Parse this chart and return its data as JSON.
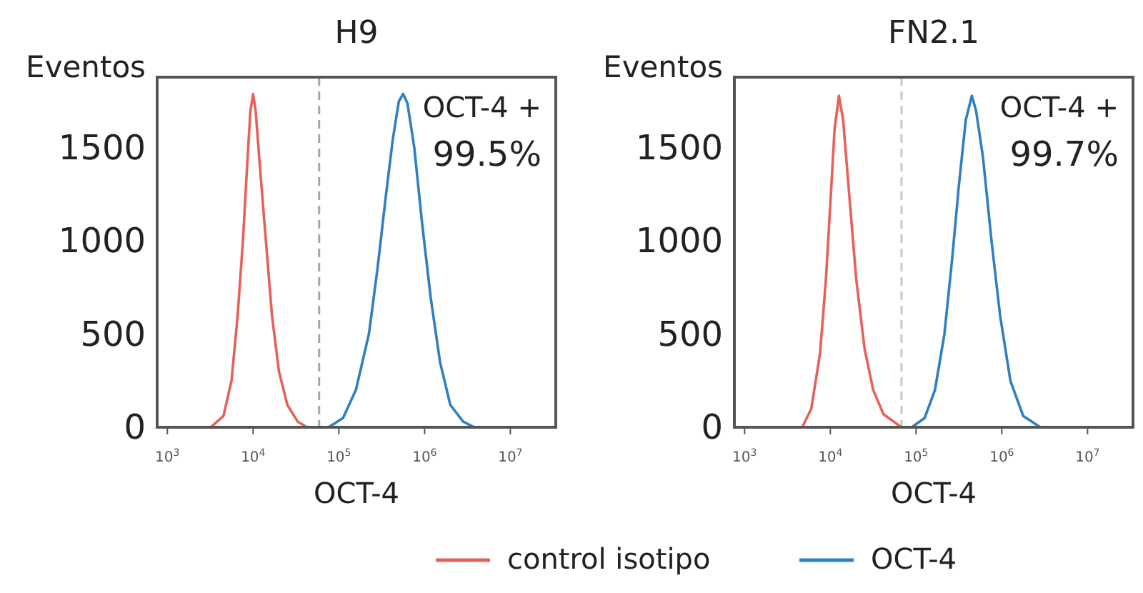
{
  "chart_data": [
    {
      "type": "line",
      "title": "H9",
      "xlabel": "OCT-4",
      "ylabel": "Eventos",
      "log": "x",
      "xlim": [
        760,
        33900000
      ],
      "xticks": [
        {
          "value": 1000,
          "label": "10$^{3}$"
        },
        {
          "value": 10000,
          "label": "10$^{4}$"
        },
        {
          "value": 100000,
          "label": "10$^{5}$"
        },
        {
          "value": 1000000,
          "label": "10$^{6}$"
        },
        {
          "value": 10000000,
          "label": "10$^{7}$"
        }
      ],
      "ylim": [
        0,
        1880
      ],
      "yticks": [
        0,
        500,
        1000,
        1500
      ],
      "legend": "bottom",
      "annotations": [
        "OCT-4 +",
        "99.5%"
      ],
      "ref_lines": [
        {
          "axis": "x",
          "value": 58900,
          "color": "#a6a6a6",
          "line_style": "dashed"
        }
      ],
      "series": [
        {
          "name": "control isotipo",
          "color": "#e8605a",
          "x": [
            3200,
            4500,
            5600,
            6600,
            7600,
            8500,
            9300,
            10000,
            10700,
            12000,
            14100,
            16600,
            20000,
            25100,
            33100,
            42700
          ],
          "values": [
            0,
            60,
            250,
            600,
            1000,
            1400,
            1700,
            1790,
            1700,
            1400,
            1000,
            600,
            300,
            120,
            30,
            0
          ]
        },
        {
          "name": "OCT-4",
          "color": "#2f7fc1",
          "x": [
            75900,
            112000,
            158000,
            224000,
            282000,
            355000,
            427000,
            501000,
            562000,
            631000,
            759000,
            933000,
            1175000,
            1514000,
            1995000,
            2818000,
            3802000
          ],
          "values": [
            0,
            50,
            200,
            500,
            850,
            1250,
            1550,
            1750,
            1790,
            1740,
            1500,
            1100,
            700,
            350,
            120,
            30,
            0
          ]
        }
      ]
    },
    {
      "type": "line",
      "title": "FN2.1",
      "xlabel": "OCT-4",
      "ylabel": "Eventos",
      "log": "x",
      "xlim": [
        760,
        33900000
      ],
      "xticks": [
        {
          "value": 1000,
          "label": "10$^{3}$"
        },
        {
          "value": 10000,
          "label": "10$^{4}$"
        },
        {
          "value": 100000,
          "label": "10$^{5}$"
        },
        {
          "value": 1000000,
          "label": "10$^{6}$"
        },
        {
          "value": 10000000,
          "label": "10$^{7}$"
        }
      ],
      "ylim": [
        0,
        1880
      ],
      "yticks": [
        0,
        500,
        1000,
        1500
      ],
      "annotations": [
        "OCT-4 +",
        "99.7%"
      ],
      "ref_lines": [
        {
          "axis": "x",
          "value": 67600,
          "color": "#c8c8c8",
          "line_style": "dashed"
        }
      ],
      "series": [
        {
          "color": "#e8605a",
          "x": [
            4700,
            6000,
            7600,
            8900,
            10000,
            11200,
            12600,
            14100,
            16600,
            20000,
            25100,
            31600,
            41700,
            67600
          ],
          "values": [
            0,
            100,
            400,
            800,
            1200,
            1600,
            1780,
            1650,
            1250,
            800,
            420,
            200,
            70,
            0
          ]
        },
        {
          "color": "#2f7fc1",
          "x": [
            89100,
            126000,
            166000,
            214000,
            263000,
            316000,
            380000,
            447000,
            501000,
            603000,
            759000,
            955000,
            1259000,
            1778000,
            2818000
          ],
          "values": [
            0,
            50,
            200,
            500,
            900,
            1300,
            1650,
            1780,
            1700,
            1450,
            1000,
            600,
            250,
            60,
            0
          ]
        }
      ]
    }
  ]
}
